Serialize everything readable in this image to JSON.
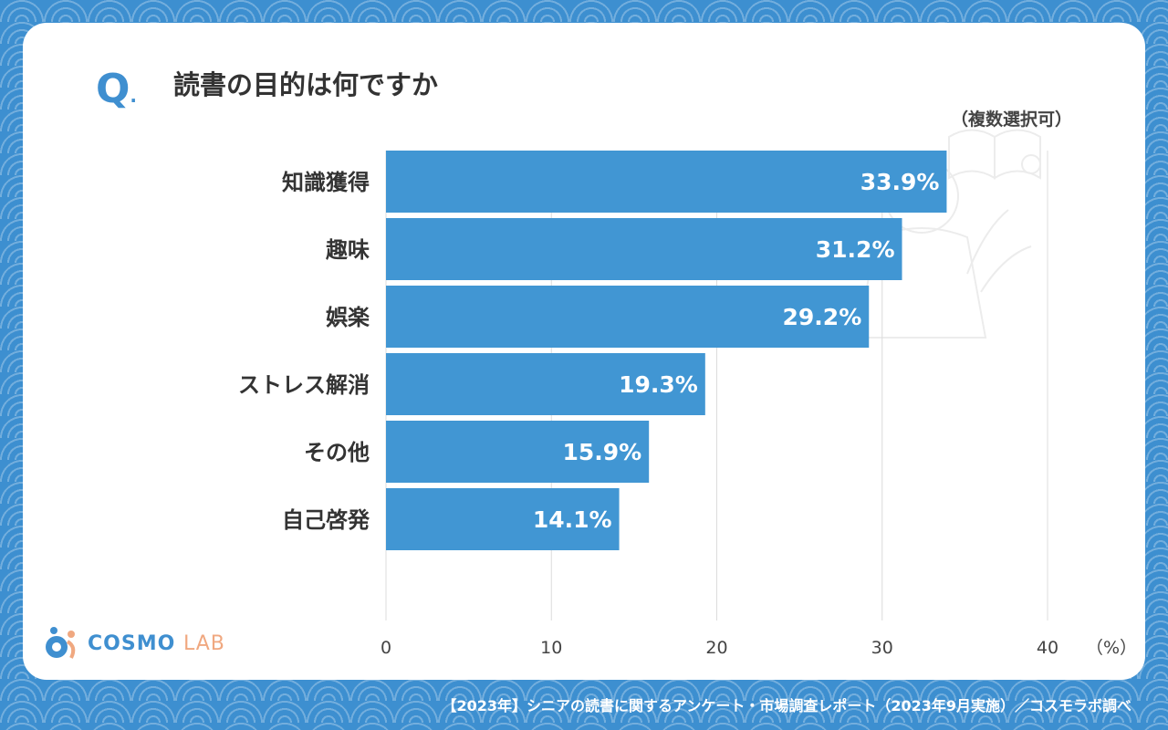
{
  "question_mark": "Q",
  "question_dot": ".",
  "title": "読書の目的は何ですか",
  "note": "（複数選択可）",
  "footer": "【2023年】シニアの読書に関するアンケート・市場調査レポート（2023年9月実施）／コスモラボ調べ",
  "logo": {
    "main": "COSMO",
    "sub": "LAB"
  },
  "colors": {
    "bar": "#4196d3",
    "background": "#3d8fd0",
    "accent": "#3f8fd0",
    "logo_sub": "#f0a880"
  },
  "chart_data": {
    "type": "bar",
    "orientation": "horizontal",
    "title": "読書の目的は何ですか",
    "categories": [
      "知識獲得",
      "趣味",
      "娯楽",
      "ストレス解消",
      "その他",
      "自己啓発"
    ],
    "values": [
      33.9,
      31.2,
      29.2,
      19.3,
      15.9,
      14.1
    ],
    "value_labels": [
      "33.9%",
      "31.2%",
      "29.2%",
      "19.3%",
      "15.9%",
      "14.1%"
    ],
    "xlim": [
      0,
      40
    ],
    "xticks": [
      "0",
      "10",
      "20",
      "30",
      "40"
    ],
    "xlabel": "（%）",
    "grid": true
  }
}
